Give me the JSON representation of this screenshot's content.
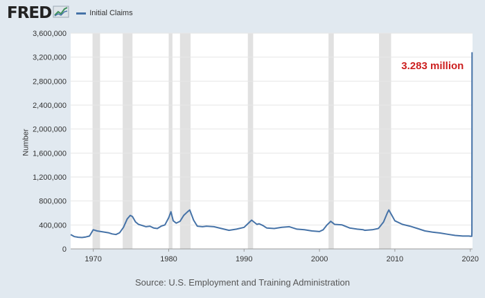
{
  "header": {
    "logo_text": "FRED",
    "logo_icon": "trend-chart-icon",
    "legend_label": "Initial Claims"
  },
  "source_text": "Source: U.S. Employment and Training Administration",
  "colors": {
    "background": "#e1e9f0",
    "plot_background": "#ffffff",
    "series": "#4572a7",
    "recession": "#e1e1e1",
    "annotation": "#cc1f1f"
  },
  "chart_data": {
    "type": "line",
    "ylabel": "Number",
    "xlabel": "",
    "xlim": [
      1967.0,
      2020.3
    ],
    "ylim": [
      0,
      3600000
    ],
    "y_ticks": [
      0,
      400000,
      800000,
      1200000,
      1600000,
      2000000,
      2400000,
      2800000,
      3200000,
      3600000
    ],
    "y_tick_labels": [
      "0",
      "400,000",
      "800,000",
      "1,200,000",
      "1,600,000",
      "2,000,000",
      "2,400,000",
      "2,800,000",
      "3,200,000",
      "3,600,000"
    ],
    "x_ticks": [
      1970,
      1980,
      1990,
      2000,
      2010,
      2020
    ],
    "x_tick_labels": [
      "1970",
      "1980",
      "1990",
      "2000",
      "2010",
      "2020"
    ],
    "grid": "horizontal",
    "legend": "top-left",
    "recessions": [
      [
        1969.9,
        1970.9
      ],
      [
        1973.9,
        1975.2
      ],
      [
        1980.0,
        1980.5
      ],
      [
        1981.5,
        1982.9
      ],
      [
        1990.5,
        1991.2
      ],
      [
        2001.2,
        2001.9
      ],
      [
        2007.9,
        2009.5
      ]
    ],
    "annotations": [
      {
        "text": "3.283 million",
        "x": 2015.0,
        "y": 3000000
      }
    ],
    "series": [
      {
        "name": "Initial Claims",
        "x": [
          1967.0,
          1967.5,
          1968.0,
          1968.5,
          1969.0,
          1969.5,
          1970.0,
          1970.5,
          1971.0,
          1971.5,
          1972.0,
          1972.5,
          1973.0,
          1973.5,
          1974.0,
          1974.5,
          1974.9,
          1975.2,
          1975.6,
          1976.0,
          1976.5,
          1977.0,
          1977.5,
          1978.0,
          1978.5,
          1979.0,
          1979.5,
          1980.0,
          1980.3,
          1980.6,
          1981.0,
          1981.5,
          1982.0,
          1982.5,
          1982.8,
          1983.3,
          1983.8,
          1984.5,
          1985.0,
          1986.0,
          1987.0,
          1988.0,
          1989.0,
          1990.0,
          1990.5,
          1991.0,
          1991.3,
          1991.7,
          1992.0,
          1992.5,
          1993.0,
          1994.0,
          1995.0,
          1996.0,
          1997.0,
          1998.0,
          1999.0,
          2000.0,
          2000.5,
          2001.0,
          2001.5,
          2001.8,
          2002.0,
          2003.0,
          2004.0,
          2005.0,
          2005.8,
          2006.0,
          2007.0,
          2007.8,
          2008.0,
          2008.5,
          2009.0,
          2009.2,
          2009.6,
          2010.0,
          2011.0,
          2012.0,
          2013.0,
          2014.0,
          2015.0,
          2016.0,
          2017.0,
          2018.0,
          2019.0,
          2019.8,
          2020.1,
          2020.2,
          2020.22,
          2020.24
        ],
        "values": [
          240000,
          205000,
          195000,
          190000,
          200000,
          215000,
          320000,
          300000,
          290000,
          280000,
          270000,
          250000,
          240000,
          270000,
          360000,
          500000,
          560000,
          540000,
          450000,
          410000,
          390000,
          370000,
          380000,
          350000,
          340000,
          380000,
          400000,
          520000,
          620000,
          470000,
          430000,
          460000,
          560000,
          620000,
          650000,
          480000,
          380000,
          370000,
          380000,
          370000,
          340000,
          310000,
          330000,
          360000,
          420000,
          480000,
          450000,
          410000,
          420000,
          390000,
          350000,
          340000,
          360000,
          370000,
          330000,
          320000,
          300000,
          290000,
          320000,
          400000,
          460000,
          430000,
          410000,
          400000,
          350000,
          330000,
          320000,
          310000,
          320000,
          340000,
          370000,
          450000,
          600000,
          650000,
          560000,
          470000,
          410000,
          380000,
          340000,
          300000,
          280000,
          265000,
          245000,
          225000,
          215000,
          215000,
          211000,
          210000,
          282000,
          3283000
        ]
      }
    ]
  }
}
